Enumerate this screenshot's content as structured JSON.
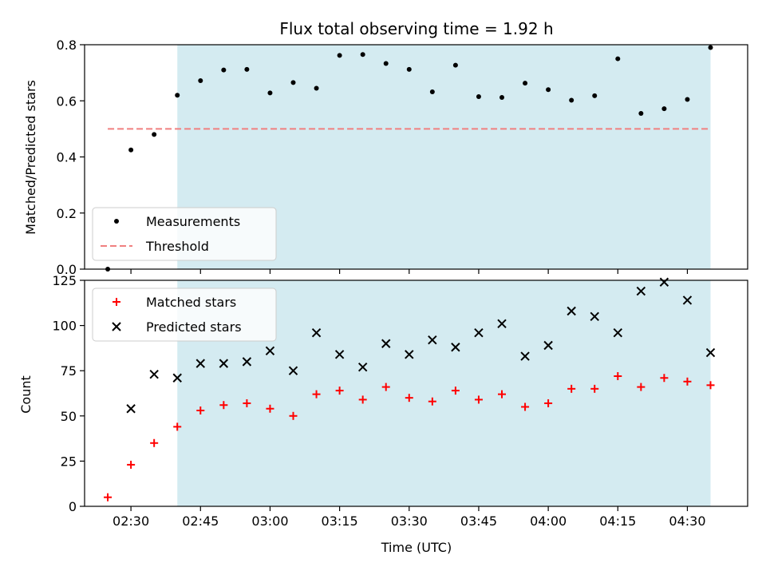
{
  "chart_data": [
    {
      "type": "scatter",
      "title": "Flux total observing time = 1.92 h",
      "xlabel": "",
      "ylabel": "Matched/Predicted stars",
      "ylim": [
        0,
        0.8
      ],
      "yticks": [
        0.0,
        0.2,
        0.4,
        0.6,
        0.8
      ],
      "ytick_labels": [
        "0.0",
        "0.2",
        "0.4",
        "0.6",
        "0.8"
      ],
      "xlim_minutes": [
        140,
        283
      ],
      "xtick_minutes": [
        150,
        165,
        180,
        195,
        210,
        225,
        240,
        255,
        270
      ],
      "x_tick_labels_visible": false,
      "shaded_region_minutes": [
        160,
        275
      ],
      "shaded_color": "#d4ebf1",
      "legend_position": "lower-left",
      "series": [
        {
          "name": "Measurements",
          "marker": "dot",
          "color": "#000000",
          "x": [
            "02:25",
            "02:30",
            "02:35",
            "02:40",
            "02:45",
            "02:50",
            "02:55",
            "03:00",
            "03:05",
            "03:10",
            "03:15",
            "03:20",
            "03:25",
            "03:30",
            "03:35",
            "03:40",
            "03:45",
            "03:50",
            "03:55",
            "04:00",
            "04:05",
            "04:10",
            "04:15",
            "04:20",
            "04:25",
            "04:30",
            "04:35"
          ],
          "values": [
            0.0,
            0.425,
            0.48,
            0.62,
            0.672,
            0.71,
            0.712,
            0.628,
            0.665,
            0.645,
            0.762,
            0.765,
            0.733,
            0.712,
            0.632,
            0.727,
            0.615,
            0.612,
            0.663,
            0.64,
            0.602,
            0.618,
            0.75,
            0.555,
            0.572,
            0.605,
            0.79
          ]
        },
        {
          "name": "Threshold",
          "style": "dashed",
          "color": "#f08080",
          "x": [
            "02:25",
            "04:35"
          ],
          "values": [
            0.5,
            0.5
          ]
        }
      ]
    },
    {
      "type": "scatter",
      "title": "",
      "xlabel": "Time (UTC)",
      "ylabel": "Count",
      "ylim": [
        0,
        125
      ],
      "yticks": [
        0,
        25,
        50,
        75,
        100,
        125
      ],
      "ytick_labels": [
        "0",
        "25",
        "50",
        "75",
        "100",
        "125"
      ],
      "xlim_minutes": [
        140,
        283
      ],
      "xtick_minutes": [
        150,
        165,
        180,
        195,
        210,
        225,
        240,
        255,
        270
      ],
      "xtick_labels": [
        "02:30",
        "02:45",
        "03:00",
        "03:15",
        "03:30",
        "03:45",
        "04:00",
        "04:15",
        "04:30"
      ],
      "shaded_region_minutes": [
        160,
        275
      ],
      "shaded_color": "#d4ebf1",
      "legend_position": "top-left",
      "series": [
        {
          "name": "Matched stars",
          "marker": "plus",
          "color": "#ff0000",
          "x": [
            "02:25",
            "02:30",
            "02:35",
            "02:40",
            "02:45",
            "02:50",
            "02:55",
            "03:00",
            "03:05",
            "03:10",
            "03:15",
            "03:20",
            "03:25",
            "03:30",
            "03:35",
            "03:40",
            "03:45",
            "03:50",
            "03:55",
            "04:00",
            "04:05",
            "04:10",
            "04:15",
            "04:20",
            "04:25",
            "04:30",
            "04:35"
          ],
          "values": [
            5,
            23,
            35,
            44,
            53,
            56,
            57,
            54,
            50,
            62,
            64,
            59,
            66,
            60,
            58,
            64,
            59,
            62,
            55,
            57,
            65,
            65,
            72,
            66,
            71,
            69,
            67
          ]
        },
        {
          "name": "Predicted stars",
          "marker": "x",
          "color": "#000000",
          "x": [
            "02:25",
            "02:30",
            "02:35",
            "02:40",
            "02:45",
            "02:50",
            "02:55",
            "03:00",
            "03:05",
            "03:10",
            "03:15",
            "03:20",
            "03:25",
            "03:30",
            "03:35",
            "03:40",
            "03:45",
            "03:50",
            "03:55",
            "04:00",
            "04:05",
            "04:10",
            "04:15",
            "04:20",
            "04:25",
            "04:30",
            "04:35"
          ],
          "values": [
            null,
            54,
            73,
            71,
            79,
            79,
            80,
            86,
            75,
            96,
            84,
            77,
            90,
            84,
            92,
            88,
            96,
            101,
            83,
            89,
            108,
            105,
            96,
            119,
            124,
            114,
            85
          ]
        }
      ]
    }
  ]
}
